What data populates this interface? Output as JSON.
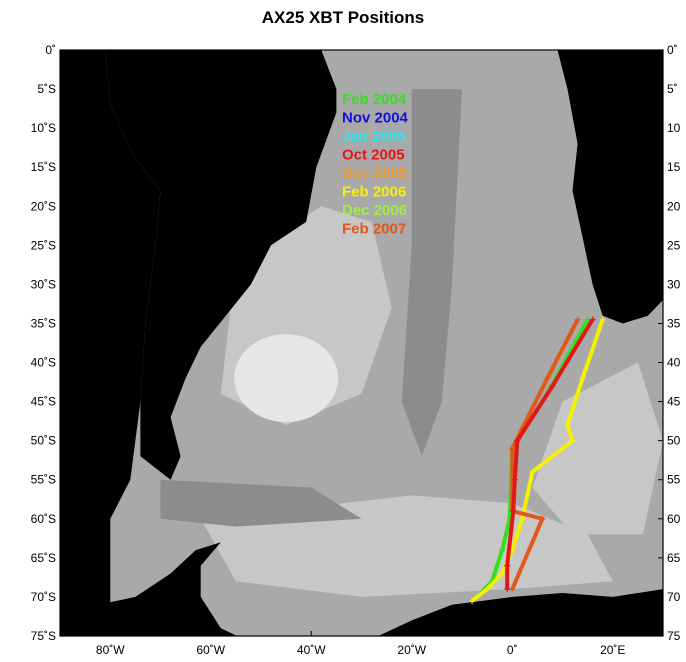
{
  "title": "AX25 XBT Positions",
  "lat_ticks": [
    "0˚",
    "5˚S",
    "10˚S",
    "15˚S",
    "20˚S",
    "25˚S",
    "30˚S",
    "35˚S",
    "40˚S",
    "45˚S",
    "50˚S",
    "55˚S",
    "60˚S",
    "65˚S",
    "70˚S",
    "75˚S"
  ],
  "right_lat_ticks": [
    "0˚",
    "5˚",
    "10",
    "15",
    "20",
    "25",
    "30",
    "35",
    "40",
    "45",
    "50",
    "55",
    "60",
    "65",
    "70",
    "75"
  ],
  "lon_ticks": [
    "80˚W",
    "60˚W",
    "40˚W",
    "20˚W",
    "0˚",
    "20˚E"
  ],
  "legend": [
    {
      "label": "Feb 2004",
      "color": "#33e01f"
    },
    {
      "label": "Nov 2004",
      "color": "#1010e0"
    },
    {
      "label": "Jan 2005",
      "color": "#2fe6ef"
    },
    {
      "label": "Oct 2005",
      "color": "#e01818"
    },
    {
      "label": "Dec 2005",
      "color": "#f29a2a"
    },
    {
      "label": "Feb 2006",
      "color": "#f5f000"
    },
    {
      "label": "Dec 2006",
      "color": "#9ef040"
    },
    {
      "label": "Feb 2007",
      "color": "#e0581c"
    }
  ],
  "map": {
    "lon_range": [
      -90,
      30
    ],
    "lat_range": [
      -75,
      0
    ],
    "colors": {
      "land": "#000000",
      "ocean_deep": "#8c8c8c",
      "ocean_mid": "#a9a9a9",
      "ocean_shallow": "#c7c7c7",
      "plateau": "#e6e6e6"
    }
  },
  "tracks": [
    {
      "name": "Feb 2004",
      "color": "#33e01f",
      "points": [
        [
          15,
          -34.5
        ],
        [
          7,
          -44
        ],
        [
          0,
          -51
        ],
        [
          -0.5,
          -60
        ],
        [
          -2,
          -64
        ],
        [
          -4,
          -68
        ],
        [
          -7,
          -70
        ]
      ]
    },
    {
      "name": "Feb 2006",
      "color": "#f5f000",
      "points": [
        [
          18,
          -34.5
        ],
        [
          14,
          -42
        ],
        [
          11,
          -48
        ],
        [
          12,
          -50
        ],
        [
          4,
          -54
        ],
        [
          2,
          -60
        ],
        [
          0,
          -64
        ],
        [
          -2,
          -67
        ],
        [
          -5,
          -69
        ],
        [
          -8,
          -70.5
        ]
      ]
    },
    {
      "name": "Feb 2007",
      "color": "#e0581c",
      "points": [
        [
          13,
          -34.5
        ],
        [
          7,
          -42
        ],
        [
          0,
          -51
        ],
        [
          0,
          -57
        ],
        [
          0,
          -59
        ],
        [
          6,
          -60
        ],
        [
          0,
          -69
        ]
      ]
    },
    {
      "name": "Oct 2005",
      "color": "#e01818",
      "points": [
        [
          16,
          -34.5
        ],
        [
          8,
          -43
        ],
        [
          1,
          -50
        ],
        [
          0.5,
          -55
        ],
        [
          0.2,
          -59
        ],
        [
          -1,
          -66
        ],
        [
          -1,
          -69
        ]
      ]
    }
  ]
}
